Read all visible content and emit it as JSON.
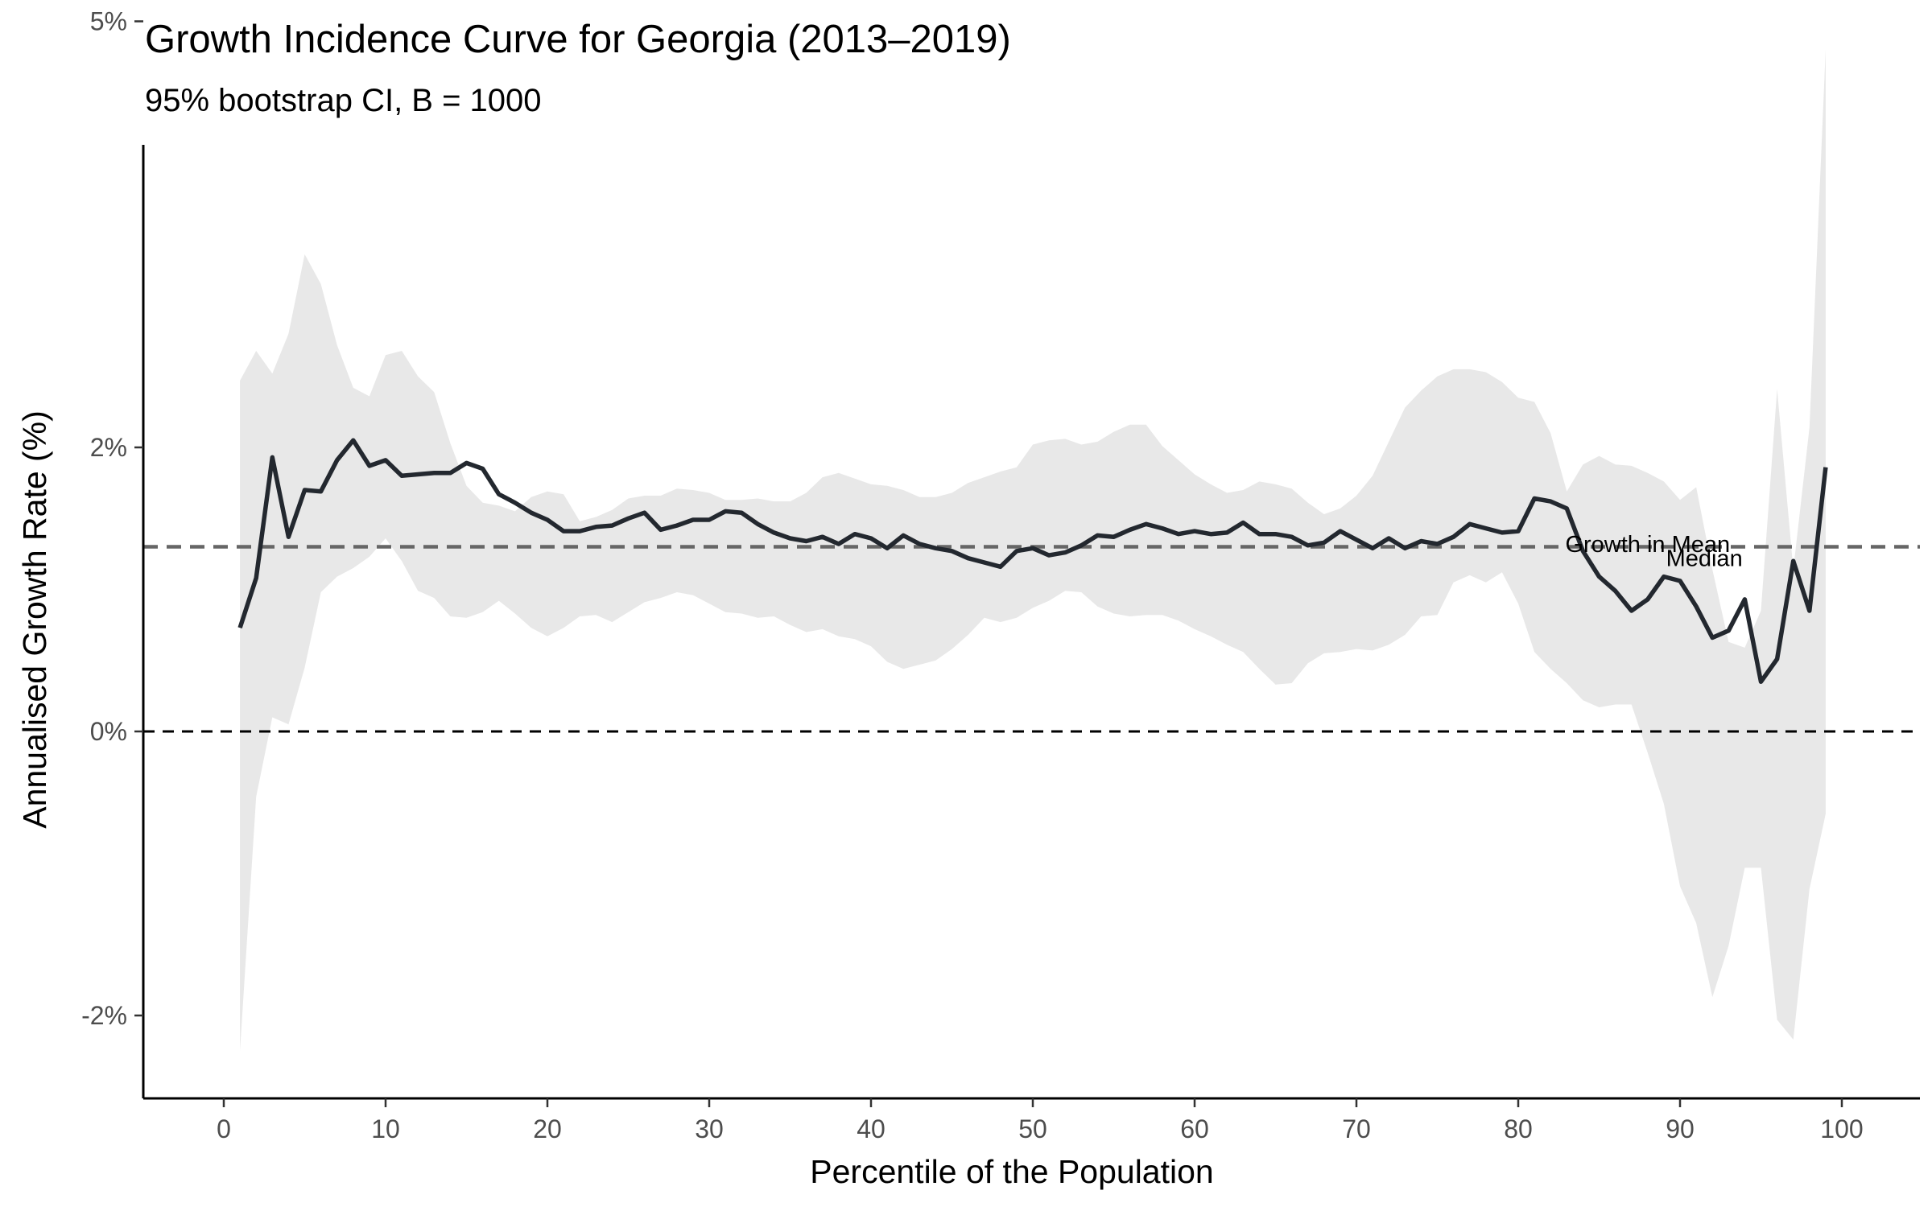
{
  "chart_data": {
    "type": "line",
    "title": "Growth Incidence Curve for Georgia (2013–2019)",
    "subtitle": "95% bootstrap CI, B = 1000",
    "xlabel": "Percentile of the Population",
    "ylabel": "Annualised Growth Rate (%)",
    "xlim": [
      -5,
      104
    ],
    "ylim": [
      -2.55,
      5.15
    ],
    "x_ticks": [
      0,
      10,
      20,
      30,
      40,
      50,
      60,
      70,
      80,
      90,
      100
    ],
    "x_tick_labels": [
      "0",
      "10",
      "20",
      "30",
      "40",
      "50",
      "60",
      "70",
      "80",
      "90",
      "100"
    ],
    "y_ticks": [
      -2,
      0,
      2,
      5
    ],
    "y_tick_labels": [
      "-2%",
      "0%",
      "2%",
      "5%"
    ],
    "grid": false,
    "legend": "none",
    "x": [
      1,
      2,
      3,
      4,
      5,
      6,
      7,
      8,
      9,
      10,
      11,
      12,
      13,
      14,
      15,
      16,
      17,
      18,
      19,
      20,
      21,
      22,
      23,
      24,
      25,
      26,
      27,
      28,
      29,
      30,
      31,
      32,
      33,
      34,
      35,
      36,
      37,
      38,
      39,
      40,
      41,
      42,
      43,
      44,
      45,
      46,
      47,
      48,
      49,
      50,
      51,
      52,
      53,
      54,
      55,
      56,
      57,
      58,
      59,
      60,
      61,
      62,
      63,
      64,
      65,
      66,
      67,
      68,
      69,
      70,
      71,
      72,
      73,
      74,
      75,
      76,
      77,
      78,
      79,
      80,
      81,
      82,
      83,
      84,
      85,
      86,
      87,
      88,
      89,
      90,
      91,
      92,
      93,
      94,
      95,
      96,
      97,
      98,
      99
    ],
    "series": [
      {
        "values": [
          0.73,
          1.08,
          1.93,
          1.37,
          1.7,
          1.69,
          1.91,
          2.05,
          1.87,
          1.91,
          1.8,
          1.81,
          1.82,
          1.82,
          1.89,
          1.85,
          1.67,
          1.61,
          1.54,
          1.49,
          1.41,
          1.41,
          1.44,
          1.45,
          1.5,
          1.54,
          1.42,
          1.45,
          1.49,
          1.49,
          1.55,
          1.54,
          1.46,
          1.4,
          1.36,
          1.34,
          1.37,
          1.32,
          1.39,
          1.36,
          1.29,
          1.38,
          1.32,
          1.29,
          1.27,
          1.22,
          1.19,
          1.16,
          1.27,
          1.29,
          1.24,
          1.26,
          1.31,
          1.38,
          1.37,
          1.42,
          1.46,
          1.43,
          1.39,
          1.41,
          1.39,
          1.4,
          1.47,
          1.39,
          1.39,
          1.37,
          1.31,
          1.33,
          1.41,
          1.35,
          1.29,
          1.36,
          1.29,
          1.34,
          1.32,
          1.37,
          1.46,
          1.43,
          1.4,
          1.41,
          1.64,
          1.62,
          1.57,
          1.27,
          1.09,
          0.99,
          0.85,
          0.93,
          1.09,
          1.06,
          0.88,
          0.66,
          0.71,
          0.93,
          0.35,
          0.51,
          1.2,
          0.85,
          1.86
        ],
        "ci_lower": [
          -2.25,
          -0.46,
          0.1,
          0.05,
          0.45,
          0.98,
          1.09,
          1.15,
          1.23,
          1.36,
          1.2,
          0.99,
          0.94,
          0.81,
          0.8,
          0.84,
          0.92,
          0.83,
          0.73,
          0.67,
          0.73,
          0.81,
          0.82,
          0.77,
          0.84,
          0.91,
          0.94,
          0.98,
          0.96,
          0.9,
          0.84,
          0.83,
          0.8,
          0.81,
          0.75,
          0.7,
          0.72,
          0.67,
          0.65,
          0.6,
          0.49,
          0.44,
          0.47,
          0.5,
          0.58,
          0.68,
          0.8,
          0.77,
          0.8,
          0.87,
          0.92,
          0.99,
          0.98,
          0.88,
          0.83,
          0.81,
          0.82,
          0.82,
          0.78,
          0.72,
          0.67,
          0.61,
          0.56,
          0.44,
          0.33,
          0.34,
          0.48,
          0.55,
          0.56,
          0.58,
          0.57,
          0.61,
          0.68,
          0.81,
          0.82,
          1.05,
          1.1,
          1.05,
          1.12,
          0.9,
          0.56,
          0.44,
          0.34,
          0.22,
          0.17,
          0.19,
          0.19,
          -0.15,
          -0.51,
          -1.09,
          -1.35,
          -1.87,
          -1.51,
          -0.96,
          -0.96,
          -2.03,
          -2.17,
          -1.11,
          -0.58
        ],
        "ci_upper": [
          2.47,
          2.68,
          2.52,
          2.8,
          3.36,
          3.15,
          2.72,
          2.42,
          2.36,
          2.65,
          2.68,
          2.5,
          2.39,
          2.03,
          1.73,
          1.61,
          1.59,
          1.55,
          1.65,
          1.69,
          1.67,
          1.48,
          1.51,
          1.56,
          1.64,
          1.66,
          1.66,
          1.71,
          1.7,
          1.68,
          1.63,
          1.63,
          1.64,
          1.62,
          1.62,
          1.68,
          1.79,
          1.82,
          1.78,
          1.74,
          1.73,
          1.7,
          1.65,
          1.65,
          1.68,
          1.75,
          1.79,
          1.83,
          1.86,
          2.02,
          2.05,
          2.06,
          2.02,
          2.04,
          2.11,
          2.16,
          2.16,
          2.01,
          1.91,
          1.81,
          1.74,
          1.68,
          1.7,
          1.76,
          1.74,
          1.71,
          1.61,
          1.53,
          1.57,
          1.66,
          1.8,
          2.04,
          2.28,
          2.4,
          2.5,
          2.55,
          2.55,
          2.53,
          2.46,
          2.35,
          2.32,
          2.1,
          1.69,
          1.88,
          1.94,
          1.88,
          1.87,
          1.82,
          1.76,
          1.63,
          1.72,
          1.14,
          0.63,
          0.59,
          0.85,
          2.41,
          1.14,
          2.14,
          4.8
        ]
      }
    ],
    "reference_lines": [
      {
        "y": 0,
        "style": "dashed",
        "color": "#000000"
      },
      {
        "y": 1.3,
        "style": "dashed",
        "color": "#666666"
      }
    ],
    "annotations": [
      {
        "text": "Growth in Mean",
        "x": 88,
        "y": 1.32
      },
      {
        "text": "Median",
        "x": 91.5,
        "y": 1.22
      }
    ],
    "colors": {
      "line": "#23282f",
      "ribbon": "#e8e8e8",
      "axis": "#000000",
      "tick_text": "#4d4d4d"
    }
  }
}
